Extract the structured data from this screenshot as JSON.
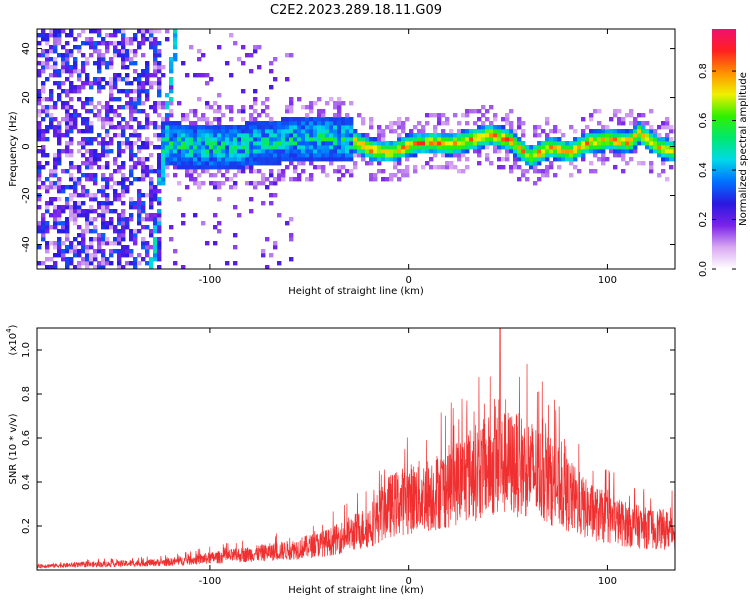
{
  "title": "C2E2.2023.289.18.11.G09",
  "chart_data": [
    {
      "type": "heatmap",
      "xlabel": "Height of straight line (km)",
      "ylabel": "Frequency (Hz)",
      "xlim": [
        -187,
        134
      ],
      "ylim": [
        -50,
        48
      ],
      "xticks": [
        -100,
        0,
        100
      ],
      "xtick_labels": [
        "-100",
        "0",
        "100"
      ],
      "yticks": [
        -40,
        -20,
        0,
        20,
        40
      ],
      "ytick_labels": [
        "-40",
        "-20",
        "0",
        "20",
        "40"
      ],
      "grid": false,
      "colorbar": {
        "label": "Normalized spectral amplitude",
        "range": [
          0,
          0.97
        ],
        "ticks": [
          0.0,
          0.2,
          0.4,
          0.6,
          0.8
        ],
        "tick_labels": [
          "0.0",
          "0.2",
          "0.4",
          "0.6",
          "0.8"
        ],
        "colormap": [
          "#ffffff",
          "#d9a8f2",
          "#7a22e8",
          "#2a18e0",
          "#0070ff",
          "#00d8e8",
          "#00e870",
          "#30f000",
          "#f0f000",
          "#ff9000",
          "#ff2020",
          "#f01070"
        ]
      },
      "ridge_frequency": {
        "x": [
          -120,
          -100,
          -80,
          -60,
          -40,
          -30,
          -20,
          -10,
          0,
          10,
          20,
          30,
          40,
          50,
          55,
          60,
          65,
          70,
          75,
          80,
          90,
          100,
          110,
          115,
          120,
          125,
          134
        ],
        "y": [
          0,
          -1,
          0,
          2,
          3,
          2,
          -2,
          -3,
          0,
          1,
          0,
          2,
          4,
          2,
          -2,
          -5,
          -3,
          -1,
          -2,
          -3,
          1,
          2,
          1,
          5,
          2,
          -1,
          -3
        ]
      },
      "streak": {
        "x": [
          -130,
          -118
        ],
        "y": [
          -50,
          48
        ]
      }
    },
    {
      "type": "line",
      "xlabel": "Height of straight line (km)",
      "ylabel": "SNR (10 * v/v)",
      "multiplier_label": "(x10",
      "multiplier_exponent": "4",
      "multiplier_close": ")",
      "xlim": [
        -187,
        134
      ],
      "ylim": [
        0,
        1.1
      ],
      "xticks": [
        -100,
        0,
        100
      ],
      "xtick_labels": [
        "-100",
        "0",
        "100"
      ],
      "yticks": [
        0.2,
        0.4,
        0.6,
        0.8,
        1.0
      ],
      "ytick_labels": [
        "0.2",
        "0.4",
        "0.6",
        "0.8",
        "1.0"
      ],
      "grid": false,
      "line_color": "#f03030",
      "envelope": {
        "x": [
          -187,
          -150,
          -120,
          -100,
          -80,
          -60,
          -40,
          -20,
          -10,
          0,
          10,
          20,
          30,
          40,
          50,
          60,
          70,
          80,
          90,
          100,
          110,
          120,
          134
        ],
        "y": [
          0.02,
          0.03,
          0.04,
          0.06,
          0.08,
          0.1,
          0.14,
          0.22,
          0.32,
          0.36,
          0.38,
          0.42,
          0.48,
          0.52,
          0.54,
          0.52,
          0.46,
          0.38,
          0.3,
          0.26,
          0.23,
          0.21,
          0.2
        ]
      },
      "peak": {
        "x": 46,
        "y": 1.1
      }
    }
  ]
}
